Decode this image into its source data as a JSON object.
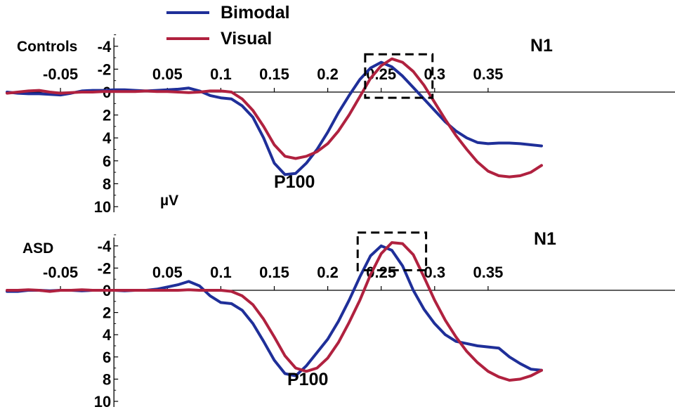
{
  "legend": {
    "items": [
      {
        "label": "Bimodal",
        "color": "#1f2f99"
      },
      {
        "label": "Visual",
        "color": "#b0213f"
      }
    ]
  },
  "chart_data": [
    {
      "type": "line",
      "panel_label": "Controls",
      "ylabel": "µV",
      "xlim": [
        -0.1,
        0.4
      ],
      "ylim": [
        -5,
        10
      ],
      "y_inverted": true,
      "x_ticks": [
        "-0.05",
        "0.05",
        "0.1",
        "0.15",
        "0.2",
        "0.25",
        "0.3",
        "0.35"
      ],
      "x_tick_values": [
        -0.05,
        0.05,
        0.1,
        0.15,
        0.2,
        0.25,
        0.3,
        0.35
      ],
      "y_ticks": [
        "-4",
        "-2",
        "0",
        "2",
        "4",
        "6",
        "8",
        "10"
      ],
      "y_tick_values": [
        -4,
        -2,
        0,
        2,
        4,
        6,
        8,
        10
      ],
      "annotations": [
        {
          "text": "N1",
          "x": 0.283,
          "y": -4.2
        },
        {
          "text": "P100",
          "x": 0.135,
          "y": 8.4
        }
      ],
      "highlight_box": {
        "x": [
          0.235,
          0.298
        ],
        "y": [
          -3.3,
          0.5
        ]
      },
      "series": [
        {
          "name": "Bimodal",
          "color": "#1f2f99",
          "x": [
            -0.1,
            -0.09,
            -0.08,
            -0.07,
            -0.06,
            -0.05,
            -0.04,
            -0.03,
            -0.02,
            -0.01,
            0.0,
            0.01,
            0.02,
            0.03,
            0.04,
            0.05,
            0.06,
            0.07,
            0.08,
            0.09,
            0.1,
            0.11,
            0.12,
            0.13,
            0.14,
            0.15,
            0.16,
            0.17,
            0.18,
            0.19,
            0.2,
            0.21,
            0.22,
            0.23,
            0.24,
            0.25,
            0.26,
            0.27,
            0.28,
            0.29,
            0.3,
            0.31,
            0.32,
            0.33,
            0.34,
            0.35,
            0.36,
            0.37,
            0.38,
            0.39,
            0.4
          ],
          "y": [
            0.0,
            0.1,
            0.15,
            0.15,
            0.2,
            0.25,
            0.1,
            -0.1,
            -0.15,
            -0.15,
            -0.2,
            -0.2,
            -0.15,
            -0.1,
            -0.15,
            -0.2,
            -0.25,
            -0.35,
            -0.1,
            0.3,
            0.5,
            0.6,
            1.2,
            2.2,
            4.0,
            6.2,
            7.2,
            7.1,
            6.2,
            5.0,
            3.5,
            1.8,
            0.3,
            -1.1,
            -2.1,
            -2.6,
            -2.2,
            -1.4,
            -0.4,
            0.6,
            1.6,
            2.6,
            3.4,
            4.0,
            4.4,
            4.5,
            4.45,
            4.45,
            4.5,
            4.6,
            4.7
          ]
        },
        {
          "name": "Visual",
          "color": "#b0213f",
          "x": [
            -0.1,
            -0.09,
            -0.08,
            -0.07,
            -0.06,
            -0.05,
            -0.04,
            -0.03,
            -0.02,
            -0.01,
            0.0,
            0.01,
            0.02,
            0.03,
            0.04,
            0.05,
            0.06,
            0.07,
            0.08,
            0.09,
            0.1,
            0.11,
            0.12,
            0.13,
            0.14,
            0.15,
            0.16,
            0.17,
            0.18,
            0.19,
            0.2,
            0.21,
            0.22,
            0.23,
            0.24,
            0.25,
            0.26,
            0.27,
            0.28,
            0.29,
            0.3,
            0.31,
            0.32,
            0.33,
            0.34,
            0.35,
            0.36,
            0.37,
            0.38,
            0.39,
            0.4
          ],
          "y": [
            0.1,
            0.0,
            -0.1,
            -0.15,
            0.0,
            0.1,
            0.05,
            0.0,
            0.0,
            -0.05,
            -0.05,
            -0.05,
            -0.05,
            -0.1,
            -0.05,
            -0.05,
            0.0,
            0.05,
            0.0,
            -0.1,
            -0.1,
            0.0,
            0.6,
            1.6,
            3.0,
            4.6,
            5.6,
            5.8,
            5.6,
            5.2,
            4.5,
            3.4,
            2.0,
            0.4,
            -1.2,
            -2.3,
            -2.9,
            -2.6,
            -1.8,
            -0.6,
            0.9,
            2.4,
            3.8,
            5.0,
            6.1,
            6.9,
            7.3,
            7.4,
            7.3,
            7.0,
            6.4
          ]
        }
      ]
    },
    {
      "type": "line",
      "panel_label": "ASD",
      "ylabel": "",
      "xlim": [
        -0.1,
        0.4
      ],
      "ylim": [
        -5,
        10
      ],
      "y_inverted": true,
      "x_ticks": [
        "-0.05",
        "0.05",
        "0.1",
        "0.15",
        "0.2",
        "0.25",
        "0.3",
        "0.35"
      ],
      "x_tick_values": [
        -0.05,
        0.05,
        0.1,
        0.15,
        0.2,
        0.25,
        0.3,
        0.35
      ],
      "y_ticks": [
        "-4",
        "-2",
        "0",
        "2",
        "4",
        "6",
        "8",
        "10"
      ],
      "y_tick_values": [
        -4,
        -2,
        0,
        2,
        4,
        6,
        8,
        10
      ],
      "annotations": [
        {
          "text": "N1",
          "x": 0.286,
          "y": -4.4
        },
        {
          "text": "P100",
          "x": 0.148,
          "y": 8.6
        }
      ],
      "highlight_box": {
        "x": [
          0.228,
          0.292
        ],
        "y": [
          -5.2,
          -1.8
        ]
      },
      "series": [
        {
          "name": "Bimodal",
          "color": "#1f2f99",
          "x": [
            -0.1,
            -0.09,
            -0.08,
            -0.07,
            -0.06,
            -0.05,
            -0.04,
            -0.03,
            -0.02,
            -0.01,
            0.0,
            0.01,
            0.02,
            0.03,
            0.04,
            0.05,
            0.06,
            0.07,
            0.08,
            0.09,
            0.1,
            0.11,
            0.12,
            0.13,
            0.14,
            0.15,
            0.16,
            0.17,
            0.18,
            0.19,
            0.2,
            0.21,
            0.22,
            0.23,
            0.24,
            0.25,
            0.26,
            0.27,
            0.28,
            0.29,
            0.3,
            0.31,
            0.32,
            0.33,
            0.34,
            0.35,
            0.36,
            0.37,
            0.38,
            0.39,
            0.4
          ],
          "y": [
            0.1,
            0.1,
            0.0,
            0.0,
            0.05,
            0.0,
            0.0,
            0.05,
            0.0,
            0.0,
            0.0,
            0.05,
            0.0,
            0.0,
            -0.1,
            -0.3,
            -0.5,
            -0.8,
            -0.4,
            0.5,
            1.1,
            1.2,
            1.8,
            3.0,
            4.6,
            6.3,
            7.5,
            7.7,
            6.8,
            5.6,
            4.4,
            2.8,
            0.9,
            -1.2,
            -3.1,
            -4.0,
            -3.6,
            -2.2,
            0.0,
            1.7,
            3.0,
            4.0,
            4.6,
            4.8,
            5.0,
            5.1,
            5.2,
            6.0,
            6.6,
            7.1,
            7.2
          ]
        },
        {
          "name": "Visual",
          "color": "#b0213f",
          "x": [
            -0.1,
            -0.09,
            -0.08,
            -0.07,
            -0.06,
            -0.05,
            -0.04,
            -0.03,
            -0.02,
            -0.01,
            0.0,
            0.01,
            0.02,
            0.03,
            0.04,
            0.05,
            0.06,
            0.07,
            0.08,
            0.09,
            0.1,
            0.11,
            0.12,
            0.13,
            0.14,
            0.15,
            0.16,
            0.17,
            0.18,
            0.19,
            0.2,
            0.21,
            0.22,
            0.23,
            0.24,
            0.25,
            0.26,
            0.27,
            0.28,
            0.29,
            0.3,
            0.31,
            0.32,
            0.33,
            0.34,
            0.35,
            0.36,
            0.37,
            0.38,
            0.39,
            0.4
          ],
          "y": [
            0.0,
            0.0,
            -0.05,
            0.0,
            0.1,
            0.0,
            0.0,
            -0.05,
            0.0,
            0.0,
            0.0,
            0.0,
            0.0,
            0.0,
            0.0,
            0.0,
            0.0,
            -0.05,
            0.0,
            0.0,
            0.0,
            0.1,
            0.5,
            1.3,
            2.6,
            4.2,
            5.9,
            7.0,
            7.3,
            7.0,
            6.1,
            4.7,
            2.9,
            0.9,
            -1.4,
            -3.3,
            -4.3,
            -4.2,
            -3.2,
            -1.2,
            0.9,
            2.7,
            4.2,
            5.5,
            6.5,
            7.3,
            7.8,
            8.1,
            8.0,
            7.7,
            7.2
          ]
        }
      ]
    }
  ]
}
